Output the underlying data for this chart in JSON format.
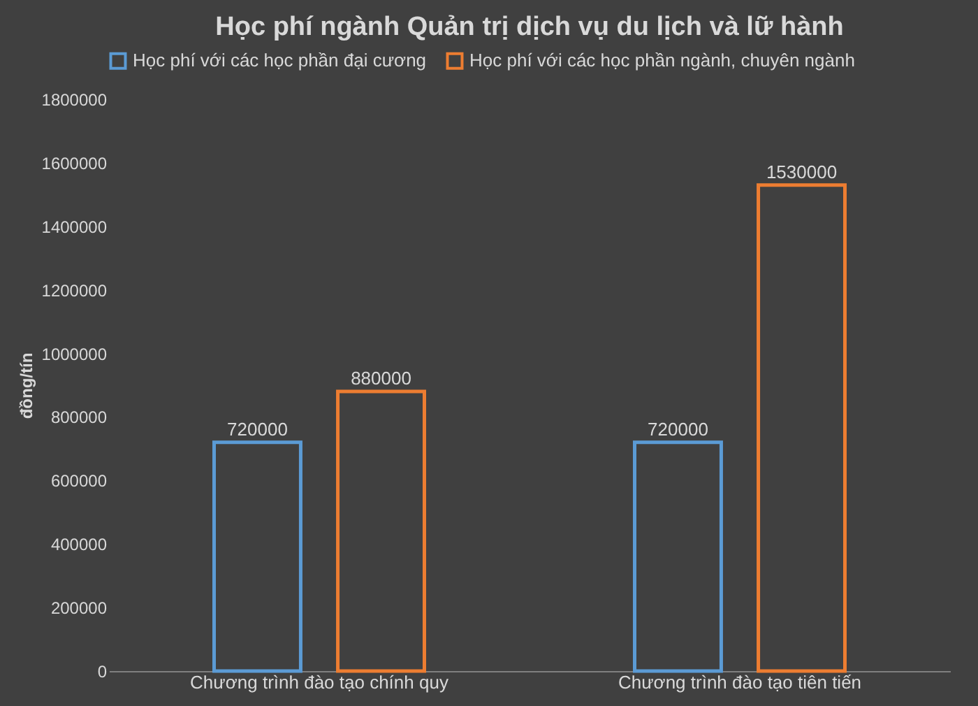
{
  "chart_data": {
    "type": "bar",
    "title": "Học phí ngành Quản trị dịch vụ du lịch và lữ hành",
    "ylabel": "đồng/tín",
    "categories": [
      "Chương trình đào tạo chính quy",
      "Chương trình đào tạo tiên tiến"
    ],
    "series": [
      {
        "name": "Học phí với các học phần đại cương",
        "color": "#5b9bd5",
        "values": [
          720000,
          720000
        ]
      },
      {
        "name": "Học phí với các học phần ngành, chuyên ngành",
        "color": "#ed7d31",
        "values": [
          880000,
          1530000
        ]
      }
    ],
    "ylim": [
      0,
      1800000
    ],
    "yticks": [
      0,
      200000,
      400000,
      600000,
      800000,
      1000000,
      1200000,
      1400000,
      1600000,
      1800000
    ],
    "grid": false,
    "legend": "top",
    "data_labels": true
  }
}
